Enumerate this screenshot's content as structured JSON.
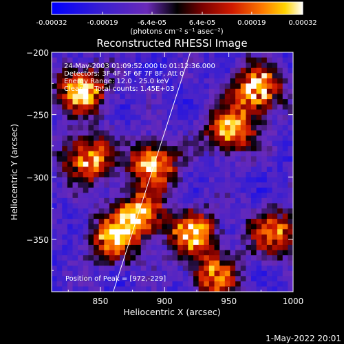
{
  "chart_data": {
    "type": "heatmap",
    "title": "Reconstructed RHESSI Image",
    "xlabel": "Heliocentric X (arcsec)",
    "ylabel": "Heliocentric Y (arcsec)",
    "xlim": [
      812,
      1000
    ],
    "ylim": [
      -392,
      -200
    ],
    "x_ticks": [
      850,
      900,
      950,
      1000
    ],
    "y_ticks": [
      -200,
      -250,
      -300,
      -350
    ],
    "colorbar": {
      "range": [
        -0.00032,
        0.00032
      ],
      "tick_labels": [
        "-0.00032",
        "-0.00019",
        "-6.4e-05",
        "6.4e-05",
        "0.00019",
        "0.00032"
      ],
      "unit_label": "(photons cm⁻² s⁻¹ asec⁻²)",
      "colormap": [
        "#0000ff",
        "#3a1fd0",
        "#6a2ab8",
        "#000000",
        "#7a0000",
        "#d01a00",
        "#ff7a00",
        "#ffd400",
        "#ffffff"
      ]
    },
    "annotations": [
      "24-May-2003 01:09:52.000 to 01:12:36.000",
      "Detectors: 3F 4F 5F 6F 7F 8F, Att 0",
      "Energy Range: 12.0 - 25.0 keV",
      "Clean     Total counts: 1.45E+03"
    ],
    "peak_label": "Position of Peak = [972,-229]",
    "peak": [
      972,
      -229
    ],
    "limb_line": [
      [
        860,
        -392
      ],
      [
        920,
        -200
      ]
    ],
    "bright_sources": [
      {
        "x": 836,
        "y": -230,
        "value": 0.00032
      },
      {
        "x": 840,
        "y": -285,
        "value": 0.00028
      },
      {
        "x": 892,
        "y": -290,
        "value": 0.0003
      },
      {
        "x": 880,
        "y": -330,
        "value": 0.00026
      },
      {
        "x": 860,
        "y": -350,
        "value": 0.00024
      },
      {
        "x": 922,
        "y": -345,
        "value": 0.00027
      },
      {
        "x": 952,
        "y": -262,
        "value": 0.00026
      },
      {
        "x": 972,
        "y": -229,
        "value": 0.00032
      },
      {
        "x": 985,
        "y": -345,
        "value": 0.00022
      },
      {
        "x": 940,
        "y": -380,
        "value": 0.0002
      }
    ]
  },
  "footer": {
    "timestamp": "1-May-2022 20:01"
  }
}
